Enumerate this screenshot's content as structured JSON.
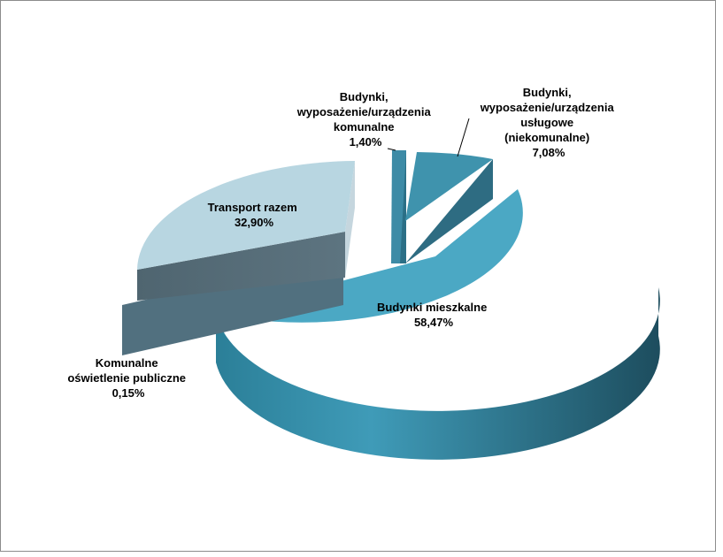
{
  "chart_data": {
    "type": "pie",
    "style": "3d-exploded",
    "legend": "none",
    "slices": [
      {
        "lines": [
          "Budynki mieszkalne",
          "58,47%"
        ],
        "value": 58.47,
        "color": "#4ba8c4"
      },
      {
        "lines": [
          "Komunalne",
          "oświetlenie publiczne",
          "0,15%"
        ],
        "value": 0.15,
        "color": "#51707f"
      },
      {
        "lines": [
          "Transport razem",
          "32,90%"
        ],
        "value": 32.9,
        "color": "#b8d6e1"
      },
      {
        "lines": [
          "Budynki,",
          "wyposażenie/urządzenia",
          "komunalne",
          "1,40%"
        ],
        "value": 1.4,
        "color": "#3d8ba6"
      },
      {
        "lines": [
          "Budynki,",
          "wyposażenie/urządzenia",
          "usługowe",
          "(niekomunalne)",
          "7,08%"
        ],
        "value": 7.08,
        "color": "#3f93ad"
      }
    ]
  }
}
